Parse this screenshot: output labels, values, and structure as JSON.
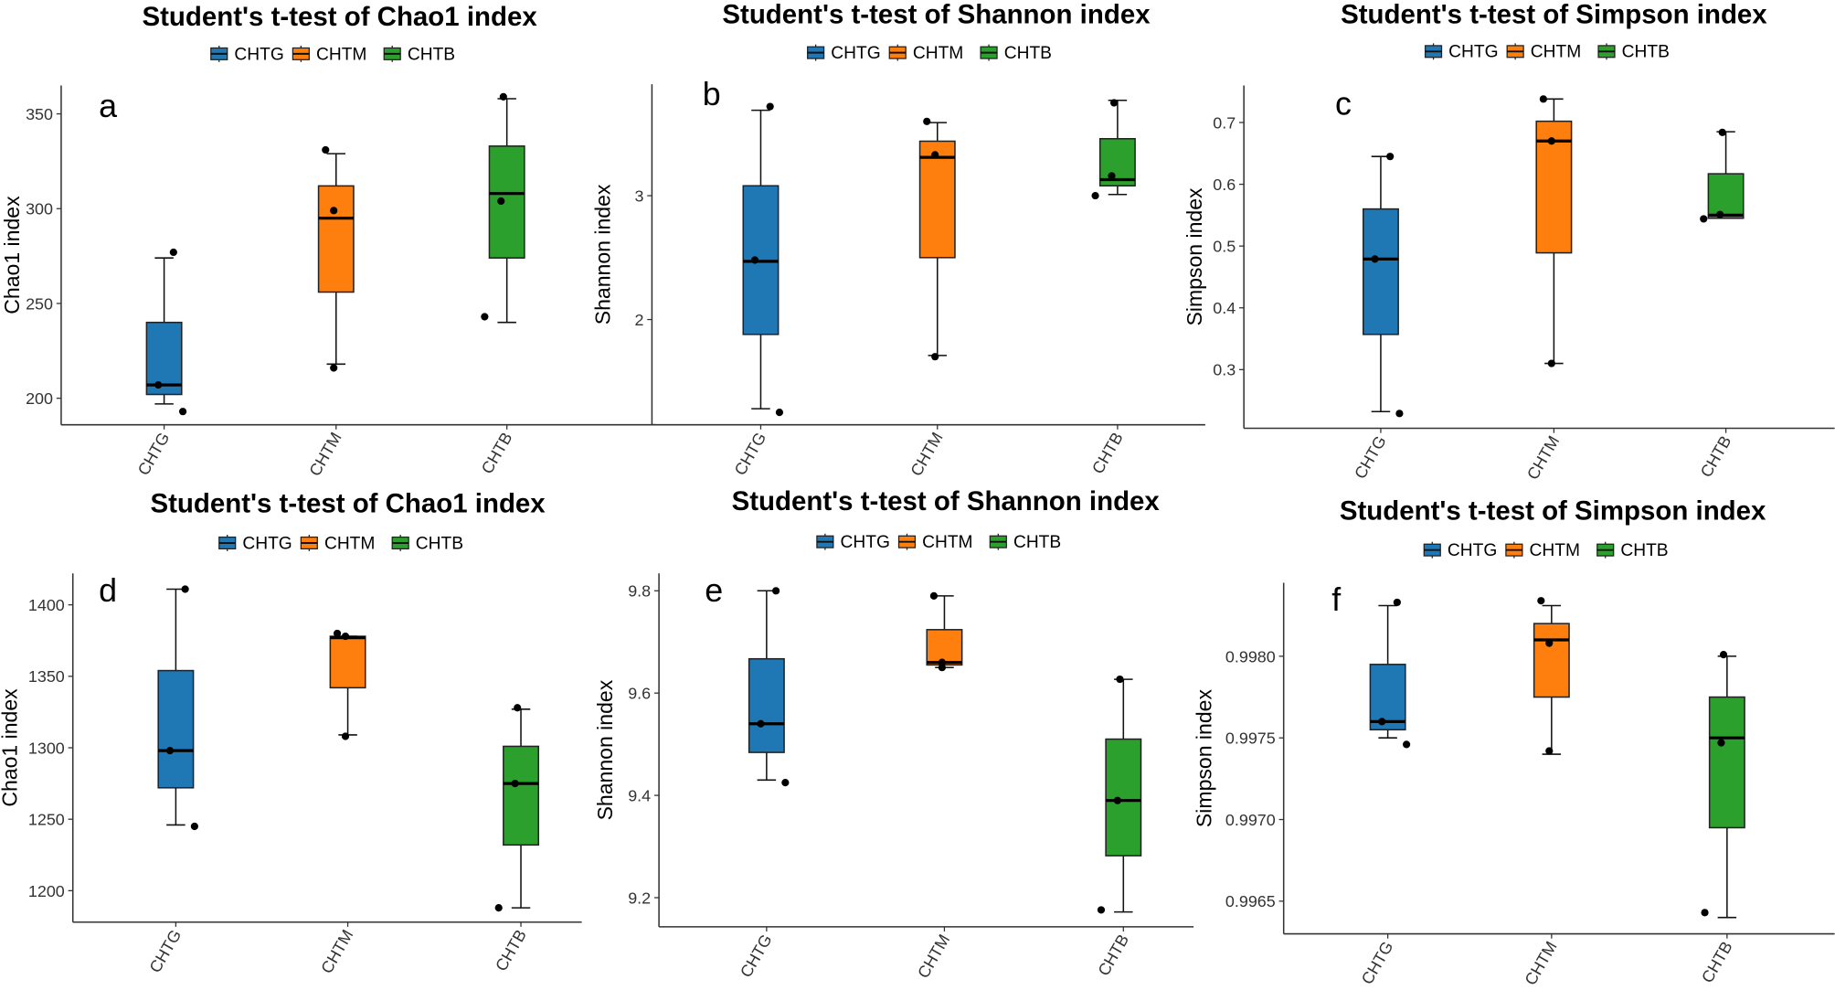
{
  "colors": {
    "CHTG": "#1f77b4",
    "CHTM": "#ff7f0e",
    "CHTB": "#2ca02c"
  },
  "chart_data": [
    {
      "type": "box",
      "panel": "a",
      "title": "Student's t-test of Chao1 index",
      "ylabel": "Chao1 index",
      "legend": [
        "CHTG",
        "CHTM",
        "CHTB"
      ],
      "legend_position": "top",
      "grid": false,
      "categories": [
        "CHTG",
        "CHTM",
        "CHTB"
      ],
      "ylim": [
        186,
        365
      ],
      "yticks": [
        200,
        250,
        300,
        350
      ],
      "ytick_labels": [
        "200",
        "250",
        "300",
        "350"
      ],
      "boxes": [
        {
          "min": 197,
          "q1": 202,
          "median": 207,
          "q3": 240,
          "max": 274,
          "points": [
            277,
            207,
            193
          ]
        },
        {
          "min": 218,
          "q1": 256,
          "median": 295,
          "q3": 312,
          "max": 329,
          "points": [
            331,
            299,
            216
          ]
        },
        {
          "min": 240,
          "q1": 274,
          "median": 308,
          "q3": 333,
          "max": 358,
          "points": [
            359,
            304,
            243
          ]
        }
      ]
    },
    {
      "type": "box",
      "panel": "b",
      "title": "Student's t-test of Shannon index",
      "ylabel": "Shannon index",
      "legend": [
        "CHTG",
        "CHTM",
        "CHTB"
      ],
      "legend_position": "top",
      "grid": false,
      "categories": [
        "CHTG",
        "CHTM",
        "CHTB"
      ],
      "ylim": [
        1.15,
        3.9
      ],
      "yticks": [
        2,
        3
      ],
      "ytick_labels": [
        "2",
        "3"
      ],
      "boxes": [
        {
          "min": 1.28,
          "q1": 1.88,
          "median": 2.47,
          "q3": 3.08,
          "max": 3.69,
          "points": [
            3.72,
            2.48,
            1.25
          ]
        },
        {
          "min": 1.71,
          "q1": 2.5,
          "median": 3.31,
          "q3": 3.44,
          "max": 3.59,
          "points": [
            3.6,
            3.33,
            1.7
          ]
        },
        {
          "min": 3.01,
          "q1": 3.08,
          "median": 3.13,
          "q3": 3.46,
          "max": 3.77,
          "points": [
            3.75,
            3.16,
            3.0
          ]
        }
      ]
    },
    {
      "type": "box",
      "panel": "c",
      "title": "Student's t-test of Simpson index",
      "ylabel": "Simpson index",
      "legend": [
        "CHTG",
        "CHTM",
        "CHTB"
      ],
      "legend_position": "top",
      "grid": false,
      "categories": [
        "CHTG",
        "CHTM",
        "CHTB"
      ],
      "ylim": [
        0.205,
        0.76
      ],
      "yticks": [
        0.3,
        0.4,
        0.5,
        0.6,
        0.7
      ],
      "ytick_labels": [
        "0.3",
        "0.4",
        "0.5",
        "0.6",
        "0.7"
      ],
      "boxes": [
        {
          "min": 0.232,
          "q1": 0.357,
          "median": 0.479,
          "q3": 0.56,
          "max": 0.645,
          "points": [
            0.645,
            0.479,
            0.229
          ]
        },
        {
          "min": 0.31,
          "q1": 0.489,
          "median": 0.67,
          "q3": 0.702,
          "max": 0.738,
          "points": [
            0.738,
            0.67,
            0.31
          ]
        },
        {
          "min": 0.545,
          "q1": 0.545,
          "median": 0.55,
          "q3": 0.617,
          "max": 0.685,
          "points": [
            0.684,
            0.551,
            0.544
          ]
        }
      ]
    },
    {
      "type": "box",
      "panel": "d",
      "title": "Student's t-test of Chao1 index",
      "ylabel": "Chao1 index",
      "legend": [
        "CHTG",
        "CHTM",
        "CHTB"
      ],
      "legend_position": "top",
      "grid": false,
      "categories": [
        "CHTG",
        "CHTM",
        "CHTB"
      ],
      "ylim": [
        1178,
        1422
      ],
      "yticks": [
        1200,
        1250,
        1300,
        1350,
        1400
      ],
      "ytick_labels": [
        "1200",
        "1250",
        "1300",
        "1350",
        "1400"
      ],
      "boxes": [
        {
          "min": 1246,
          "q1": 1272,
          "median": 1298,
          "q3": 1354,
          "max": 1411,
          "points": [
            1411,
            1298,
            1245
          ]
        },
        {
          "min": 1309,
          "q1": 1342,
          "median": 1377,
          "q3": 1378,
          "max": 1378,
          "points": [
            1380,
            1378,
            1308
          ]
        },
        {
          "min": 1188,
          "q1": 1232,
          "median": 1275,
          "q3": 1301,
          "max": 1327,
          "points": [
            1328,
            1275,
            1188
          ]
        }
      ]
    },
    {
      "type": "box",
      "panel": "e",
      "title": "Student's t-test of Shannon index",
      "ylabel": "Shannon index",
      "legend": [
        "CHTG",
        "CHTM",
        "CHTB"
      ],
      "legend_position": "top",
      "grid": false,
      "categories": [
        "CHTG",
        "CHTM",
        "CHTB"
      ],
      "ylim": [
        9.143,
        9.834
      ],
      "yticks": [
        9.2,
        9.4,
        9.6,
        9.8
      ],
      "ytick_labels": [
        "9.2",
        "9.4",
        "9.6",
        "9.8"
      ],
      "boxes": [
        {
          "min": 9.43,
          "q1": 9.484,
          "median": 9.54,
          "q3": 9.667,
          "max": 9.8,
          "points": [
            9.8,
            9.54,
            9.425
          ]
        },
        {
          "min": 9.65,
          "q1": 9.655,
          "median": 9.66,
          "q3": 9.724,
          "max": 9.79,
          "points": [
            9.79,
            9.66,
            9.65
          ]
        },
        {
          "min": 9.172,
          "q1": 9.282,
          "median": 9.39,
          "q3": 9.51,
          "max": 9.627,
          "points": [
            9.627,
            9.39,
            9.176
          ]
        }
      ]
    },
    {
      "type": "box",
      "panel": "f",
      "title": "Student's t-test of Simpson index",
      "ylabel": "Simpson index",
      "legend": [
        "CHTG",
        "CHTM",
        "CHTB"
      ],
      "legend_position": "top",
      "grid": false,
      "categories": [
        "CHTG",
        "CHTM",
        "CHTB"
      ],
      "ylim": [
        0.9963,
        0.99845
      ],
      "yticks": [
        0.9965,
        0.997,
        0.9975,
        0.998
      ],
      "ytick_labels": [
        "0.9965",
        "0.9970",
        "0.9975",
        "0.9980"
      ],
      "boxes": [
        {
          "min": 0.9975,
          "q1": 0.99755,
          "median": 0.9976,
          "q3": 0.99795,
          "max": 0.99831,
          "points": [
            0.99833,
            0.9976,
            0.99746
          ]
        },
        {
          "min": 0.9974,
          "q1": 0.99775,
          "median": 0.9981,
          "q3": 0.9982,
          "max": 0.99831,
          "points": [
            0.99834,
            0.99808,
            0.99742
          ]
        },
        {
          "min": 0.9964,
          "q1": 0.99695,
          "median": 0.9975,
          "q3": 0.99775,
          "max": 0.998,
          "points": [
            0.99801,
            0.99747,
            0.99643
          ]
        }
      ]
    }
  ]
}
